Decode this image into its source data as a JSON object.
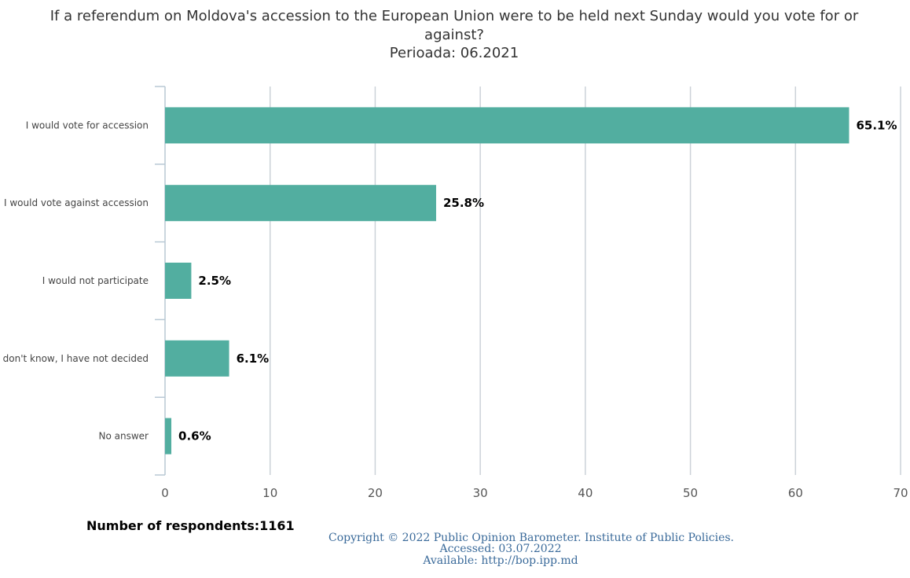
{
  "chart_data": {
    "type": "bar",
    "orientation": "horizontal",
    "title": [
      "If a referendum on Moldova's accession to the European Union were to be held next Sunday would you vote for or",
      "against?"
    ],
    "subtitle": "Perioada: 06.2021",
    "categories": [
      "I would vote for accession",
      "I would vote against accession",
      "I would not participate",
      "I don't know, I have not decided",
      "No answer"
    ],
    "values": [
      65.1,
      25.8,
      2.5,
      6.1,
      0.6
    ],
    "data_labels": [
      "65.1%",
      "25.8%",
      "2.5%",
      "6.1%",
      "0.6%"
    ],
    "xlim": [
      0,
      70
    ],
    "xticks": [
      "0",
      "10",
      "20",
      "30",
      "40",
      "50",
      "60",
      "70"
    ],
    "grid": true,
    "bar_color": "#52aea0"
  },
  "footer": {
    "respondents": "Number of respondents:1161",
    "copyright": "Copyright © 2022 Public Opinion Barometer. Institute of Public Policies.",
    "accessed": "Accessed: 03.07.2022",
    "available": "Available: http://bop.ipp.md"
  }
}
